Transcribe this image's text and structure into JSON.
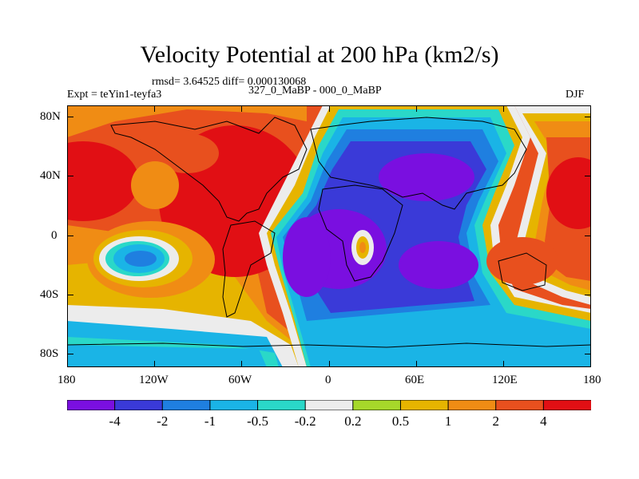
{
  "title": "Velocity Potential at 200 hPa (km2/s)",
  "stats": "rmsd= 3.64525 diff= 0.000130068",
  "experiment": "Expt = teYin1-teyfa3",
  "comparison": "327_0_MaBP - 000_0_MaBP",
  "season": "DJF",
  "lat_ticks": [
    "80N",
    "40N",
    "0",
    "40S",
    "80S"
  ],
  "lon_ticks": [
    "180",
    "120W",
    "60W",
    "0",
    "60E",
    "120E",
    "180"
  ],
  "colorbar": {
    "labels": [
      "-4",
      "-2",
      "-1",
      "-0.5",
      "-0.2",
      "0.2",
      "0.5",
      "1",
      "2",
      "4"
    ],
    "colors": [
      "#7a0fe0",
      "#3a3ad8",
      "#1f7fe0",
      "#1ab4e6",
      "#2ad8c8",
      "#ececec",
      "#a6d82a",
      "#e6b400",
      "#f08c14",
      "#e8501e",
      "#e10f14"
    ]
  }
}
